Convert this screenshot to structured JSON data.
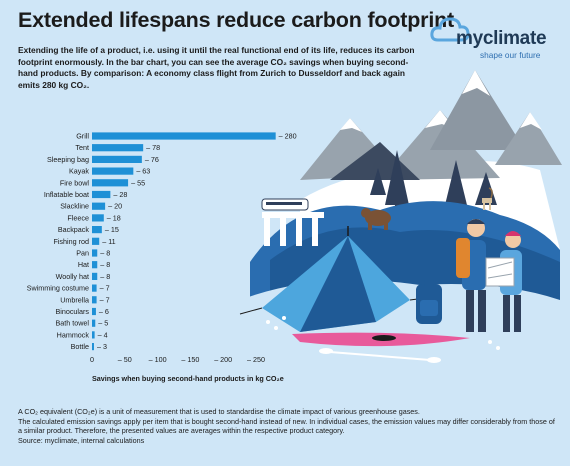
{
  "header": {
    "title": "Extended lifespans reduce carbon footprint",
    "intro": "Extending the life of a product, i.e. using it until the real functional end of its life, reduces its carbon footprint enormously. In the bar chart, you can see the average CO₂ savings when buying second-hand products. By comparison: A economy class flight from Zurich to Dusseldorf and back again emits 280 kg CO₂."
  },
  "logo": {
    "name": "myclimate",
    "tagline": "shape our future"
  },
  "footer": {
    "line1": "A CO₂ equivalent (CO₂e) is a unit of measurement that is used to standardise the climate impact of various greenhouse gases.",
    "line2": "The calculated emission savings apply per item that is bought second-hand instead of new. In individual cases, the emission values may differ considerably from those of a similar product. Therefore, the presented values are averages within the respective product category.",
    "line3": "Source: myclimate, internal calculations"
  },
  "colors": {
    "background": "#cfe6f7",
    "bar": "#1e90d6",
    "text": "#1b1b1b",
    "logo": "#1f3a56"
  },
  "chart_data": {
    "type": "bar",
    "orientation": "horizontal",
    "categories": [
      "Grill",
      "Tent",
      "Sleeping bag",
      "Kayak",
      "Fire bowl",
      "Inflatable boat",
      "Slackline",
      "Fleece",
      "Backpack",
      "Fishing rod",
      "Pan",
      "Hat",
      "Woolly hat",
      "Swimming costume",
      "Umbrella",
      "Binoculars",
      "Bath towel",
      "Hammock",
      "Bottle"
    ],
    "values": [
      280,
      78,
      76,
      63,
      55,
      28,
      20,
      18,
      15,
      11,
      8,
      8,
      8,
      7,
      7,
      6,
      5,
      4,
      3
    ],
    "value_labels": [
      "– 280",
      "– 78",
      "– 76",
      "– 63",
      "– 55",
      "– 28",
      "– 20",
      "– 18",
      "– 15",
      "– 11",
      "– 8",
      "– 8",
      "– 8",
      "– 7",
      "– 7",
      "– 6",
      "– 5",
      "– 4",
      "– 3"
    ],
    "xticks": [
      0,
      50,
      100,
      150,
      200,
      250
    ],
    "xtick_labels": [
      "0",
      "– 50",
      "– 100",
      "– 150",
      "– 200",
      "– 250"
    ],
    "xlabel": "Savings when buying second-hand products in kg CO₂e",
    "xlim": [
      0,
      280
    ],
    "grid": false
  }
}
